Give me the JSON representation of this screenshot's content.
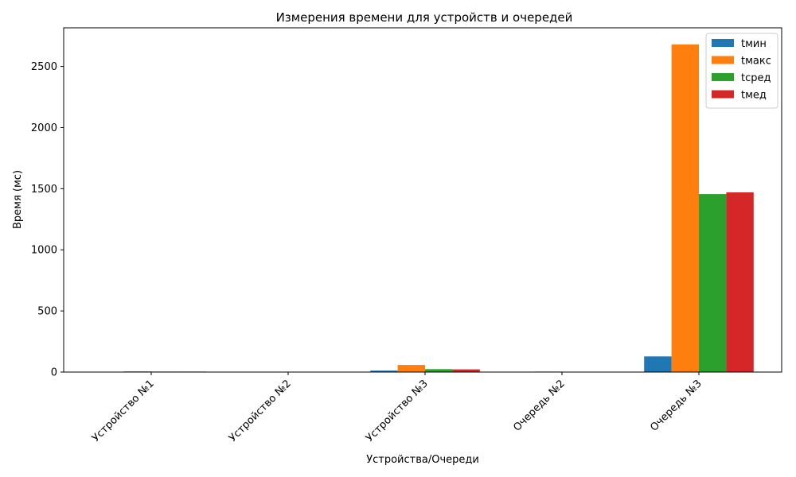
{
  "chart_data": {
    "type": "bar",
    "title": "Измерения времени для устройств и очередей",
    "xlabel": "Устройства/Очереди",
    "ylabel": "Время (мс)",
    "categories": [
      "Устройство №1",
      "Устройство №2",
      "Устройство №3",
      "Очередь №2",
      "Очередь №3"
    ],
    "series": [
      {
        "name": "tмин",
        "color": "#1f77b4",
        "values": [
          3,
          0,
          12,
          0,
          128
        ]
      },
      {
        "name": "tмакс",
        "color": "#ff7f0e",
        "values": [
          6,
          0,
          58,
          4,
          2680
        ]
      },
      {
        "name": "tсред",
        "color": "#2ca02c",
        "values": [
          4,
          0,
          24,
          1,
          1456
        ]
      },
      {
        "name": "tмед",
        "color": "#d62728",
        "values": [
          4,
          0,
          22,
          1,
          1470
        ]
      }
    ],
    "ylim": [
      0,
      2816
    ],
    "yticks": [
      0,
      500,
      1000,
      1500,
      2000,
      2500
    ],
    "grid": false,
    "legend_position": "top-right"
  }
}
